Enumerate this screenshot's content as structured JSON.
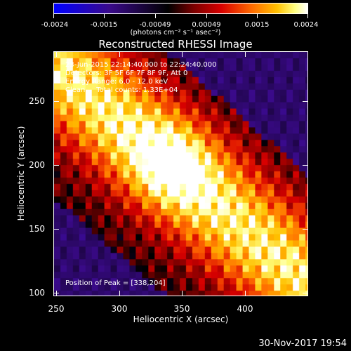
{
  "colorbar": {
    "ticks": [
      "-0.0024",
      "-0.0015",
      "-0.00049",
      "0.00049",
      "0.0015",
      "0.0024"
    ],
    "units": "(photons cm⁻² s⁻¹ asec⁻²)"
  },
  "title": "Reconstructed RHESSI Image",
  "info": {
    "line1": "23-Jun-2015 22:14:40.000 to 22:24:40.000",
    "line2": "Detectors: 3F 5F 6F 7F 8F 9F, Att 0",
    "line3": "Energy Range: 6.0 - 12.0 keV",
    "line4": "Clean     Total counts: 1.33E+04",
    "peak": "Position of Peak = [338,204]"
  },
  "axes": {
    "xlabel": "Heliocentric X (arcsec)",
    "ylabel": "Heliocentric Y (arcsec)",
    "xticks": [
      "250",
      "300",
      "350",
      "400"
    ],
    "yticks": [
      "250",
      "200",
      "150",
      "100"
    ]
  },
  "timestamp": "30-Nov-2017 19:54",
  "colors": {
    "cb_low": "#0000ff",
    "cb_mid": "#000000",
    "cb_high": "#ffffff"
  }
}
